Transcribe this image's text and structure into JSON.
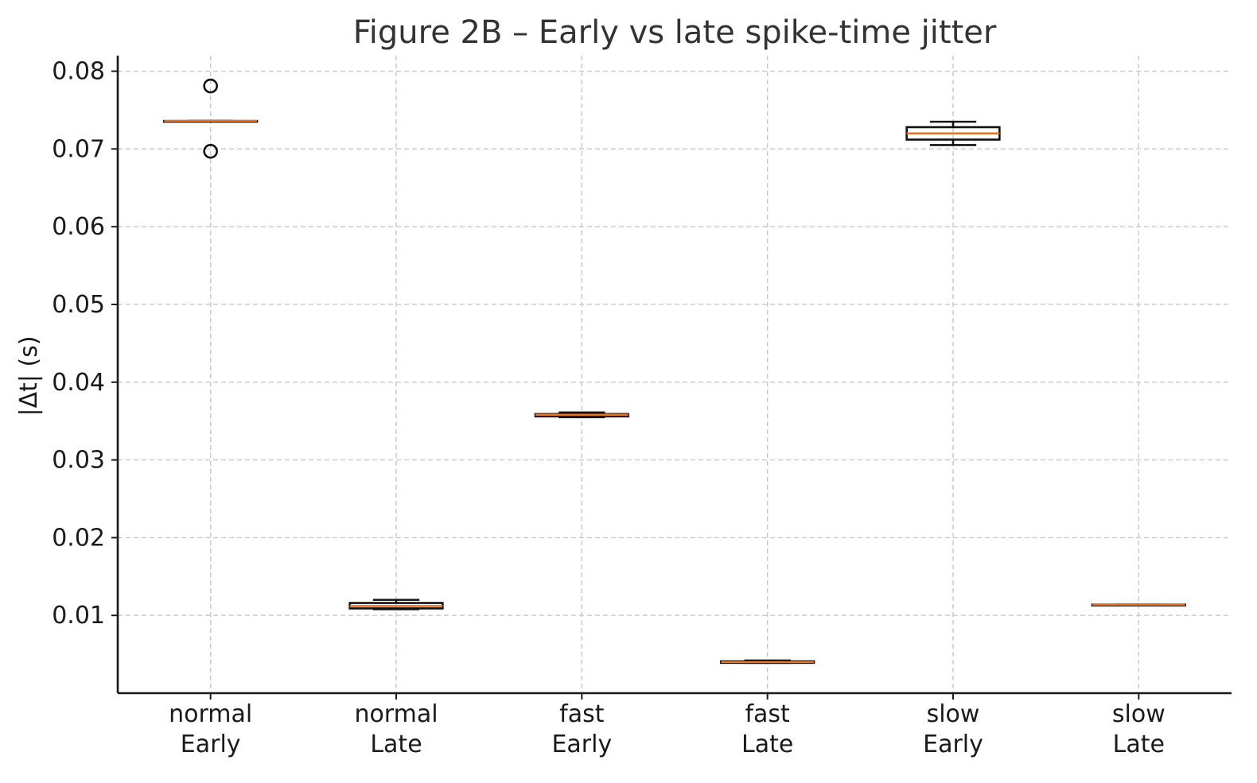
{
  "chart_data": {
    "type": "box",
    "title": "Figure 2B – Early vs late spike-time jitter",
    "xlabel": "",
    "ylabel": "|Δt| (s)",
    "ylim": [
      0.0,
      0.082
    ],
    "yticks": [
      0.01,
      0.02,
      0.03,
      0.04,
      0.05,
      0.06,
      0.07,
      0.08
    ],
    "ytick_labels": [
      "0.01",
      "0.02",
      "0.03",
      "0.04",
      "0.05",
      "0.06",
      "0.07",
      "0.08"
    ],
    "grid": true,
    "categories": [
      [
        "normal",
        "Early"
      ],
      [
        "normal",
        "Late"
      ],
      [
        "fast",
        "Early"
      ],
      [
        "fast",
        "Late"
      ],
      [
        "slow",
        "Early"
      ],
      [
        "slow",
        "Late"
      ]
    ],
    "boxes": [
      {
        "whislo": 0.0736,
        "q1": 0.0736,
        "med": 0.0736,
        "q3": 0.0736,
        "whishi": 0.0736,
        "fliers": [
          0.0781,
          0.0697
        ]
      },
      {
        "whislo": 0.0108,
        "q1": 0.0109,
        "med": 0.0112,
        "q3": 0.0116,
        "whishi": 0.012,
        "fliers": []
      },
      {
        "whislo": 0.0355,
        "q1": 0.0356,
        "med": 0.0358,
        "q3": 0.0359,
        "whishi": 0.0361,
        "fliers": []
      },
      {
        "whislo": 0.0039,
        "q1": 0.0039,
        "med": 0.004,
        "q3": 0.0041,
        "whishi": 0.0042,
        "fliers": []
      },
      {
        "whislo": 0.0705,
        "q1": 0.0712,
        "med": 0.072,
        "q3": 0.0728,
        "whishi": 0.0735,
        "fliers": []
      },
      {
        "whislo": 0.0114,
        "q1": 0.0114,
        "med": 0.0114,
        "q3": 0.0114,
        "whishi": 0.0114,
        "fliers": []
      }
    ],
    "colors": {
      "box": "#111111",
      "median": "#e8742a",
      "grid": "#c8c8c8"
    }
  }
}
